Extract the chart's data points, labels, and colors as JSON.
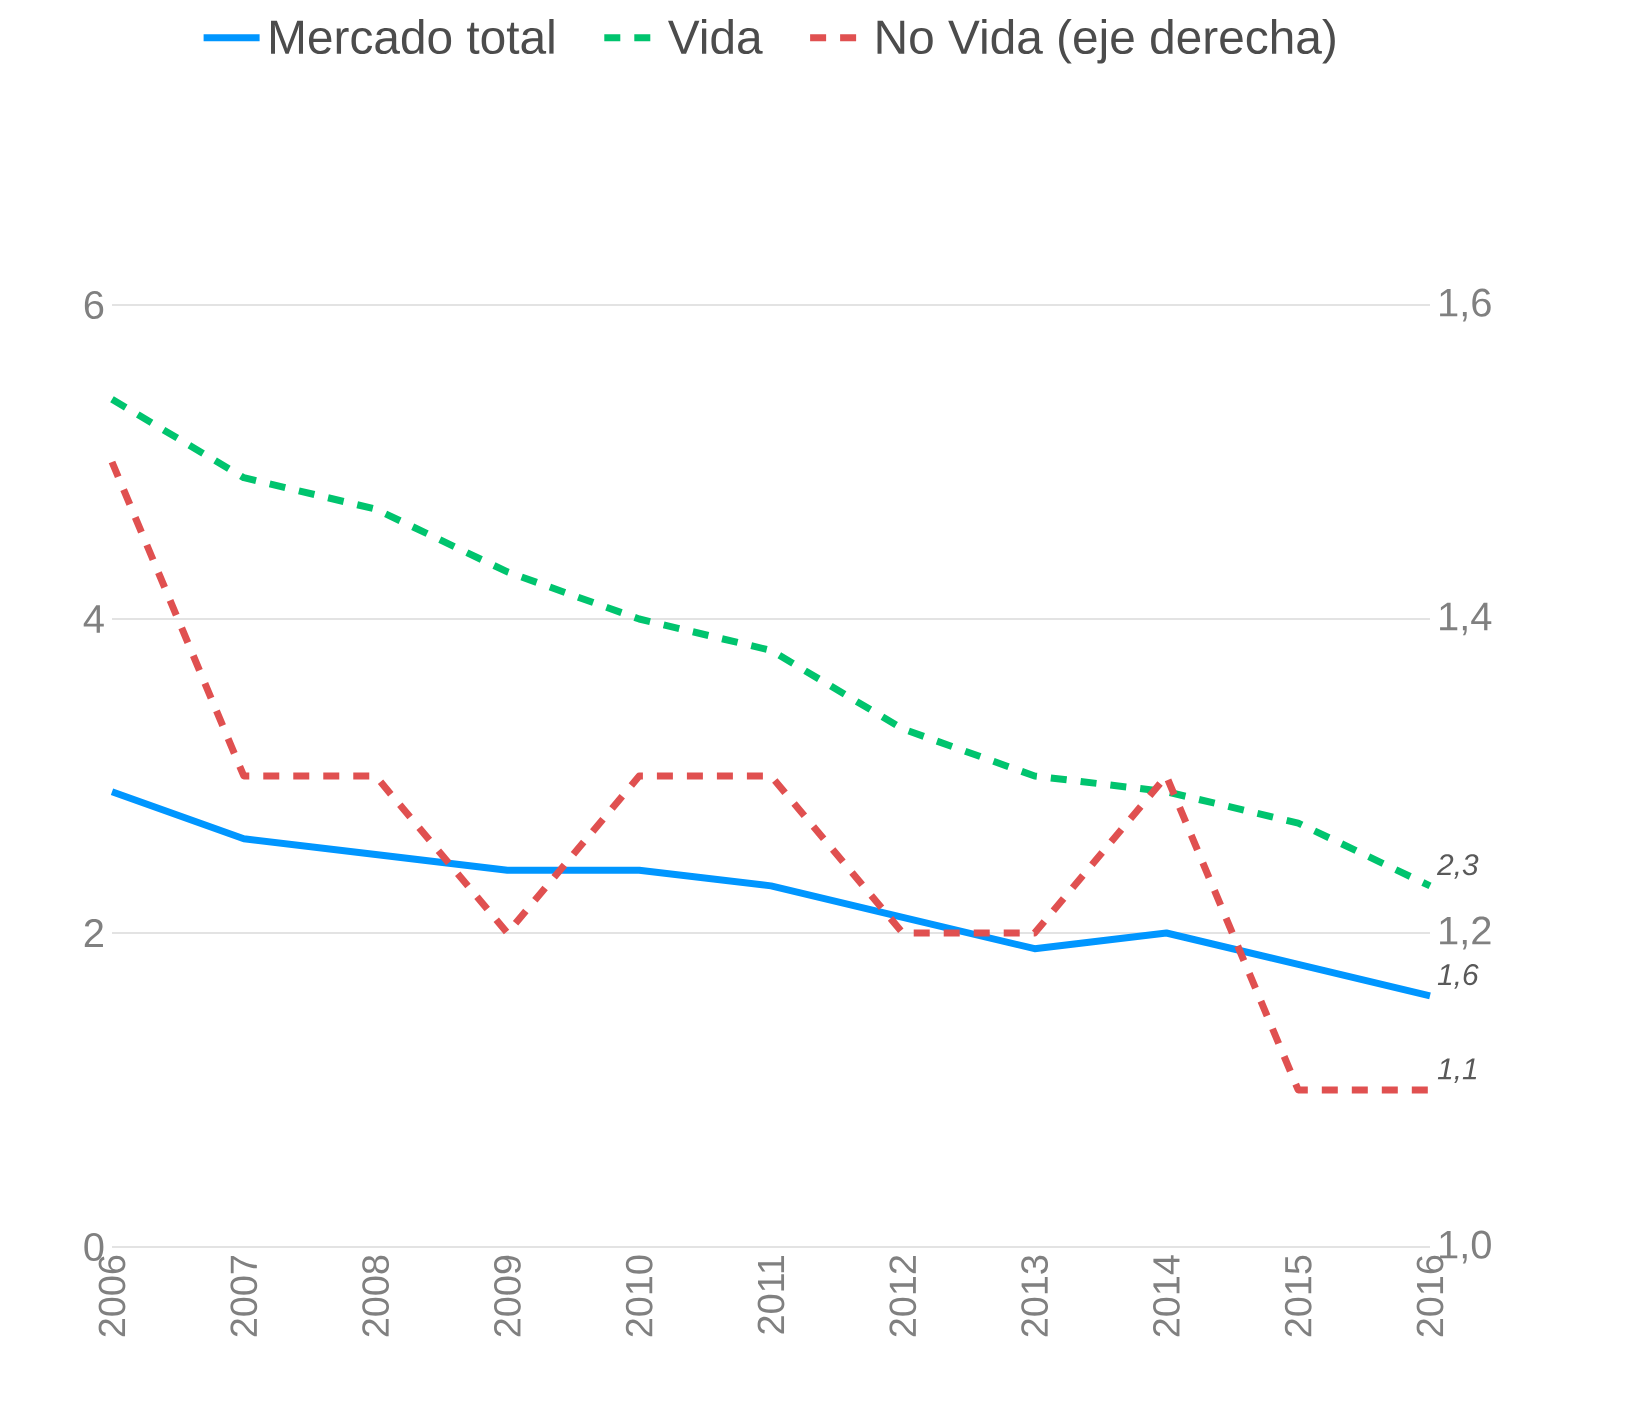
{
  "chart_data": {
    "type": "line",
    "categories": [
      "2006",
      "2007",
      "2008",
      "2009",
      "2010",
      "2011",
      "2012",
      "2013",
      "2014",
      "2015",
      "2016"
    ],
    "series": [
      {
        "name": "Mercado total",
        "color": "#0096ff",
        "line_style": "solid",
        "values": [
          2.9,
          2.6,
          2.5,
          2.4,
          2.4,
          2.3,
          2.1,
          1.9,
          2.0,
          1.8,
          1.6
        ],
        "value_labels": [
          null,
          null,
          null,
          null,
          null,
          null,
          null,
          null,
          null,
          null,
          "1,6"
        ]
      },
      {
        "name": "Vida",
        "color": "#00c46e",
        "line_style": "dashed",
        "values": [
          5.4,
          4.9,
          4.7,
          4.3,
          4.0,
          3.8,
          3.3,
          3.0,
          2.9,
          2.7,
          2.3
        ],
        "value_labels": [
          null,
          null,
          null,
          null,
          null,
          null,
          null,
          null,
          null,
          null,
          "2,3"
        ]
      },
      {
        "name": "No Vida (eje derecha)",
        "color": "#e05050",
        "line_style": "dashed",
        "axis": "y2",
        "values": [
          1.5,
          1.3,
          1.3,
          1.2,
          1.3,
          1.3,
          1.2,
          1.2,
          1.3,
          1.1,
          1.1
        ],
        "value_labels": [
          null,
          null,
          null,
          null,
          null,
          null,
          null,
          null,
          null,
          null,
          "1,1"
        ]
      }
    ],
    "ylim": [
      0,
      6
    ],
    "yticks": [
      0,
      2,
      4,
      6
    ],
    "y2lim": [
      1.0,
      1.6
    ],
    "y2ticks": [
      {
        "value": 1.0,
        "label": "1,0"
      },
      {
        "value": 1.2,
        "label": "1,2"
      },
      {
        "value": 1.4,
        "label": "1,4"
      },
      {
        "value": 1.6,
        "label": "1,6"
      }
    ],
    "grid": "y",
    "legend": "top",
    "marker": "none"
  }
}
